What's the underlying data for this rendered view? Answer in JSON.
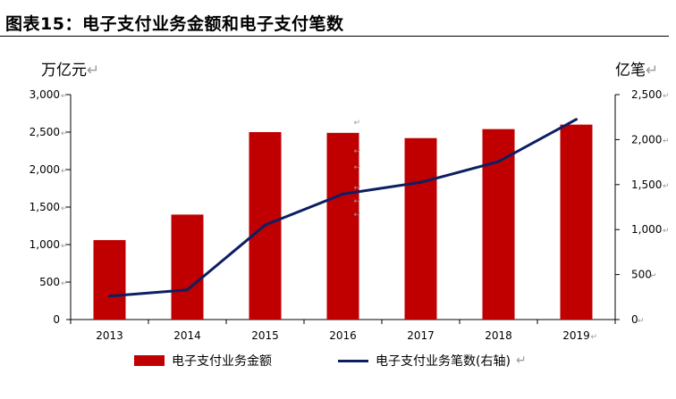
{
  "title": "图表15：电子支付业务金额和电子支付笔数",
  "left_unit": "万亿元",
  "right_unit": "亿笔",
  "colors": {
    "bar": "#c00000",
    "line": "#0d1f63",
    "axis": "#000000",
    "mark": "#9a9a9a"
  },
  "chart_data": {
    "type": "bar",
    "categories": [
      "2013",
      "2014",
      "2015",
      "2016",
      "2017",
      "2018",
      "2019"
    ],
    "series": [
      {
        "name": "电子支付业务金额",
        "type": "bar",
        "axis": "left",
        "values": [
          1060,
          1400,
          2500,
          2490,
          2420,
          2540,
          2600
        ]
      },
      {
        "name": "电子支付业务笔数(右轴)",
        "type": "line",
        "axis": "right",
        "values": [
          260,
          330,
          1050,
          1395,
          1525,
          1755,
          2225
        ]
      }
    ],
    "y_left": {
      "min": 0,
      "max": 3000,
      "ticks": [
        "0",
        "500",
        "1,000",
        "1,500",
        "2,000",
        "2,500",
        "3,000"
      ]
    },
    "y_right": {
      "min": 0,
      "max": 2500,
      "ticks": [
        "0",
        "500",
        "1,000",
        "1,500",
        "2,000",
        "2,500"
      ]
    },
    "grid": false,
    "legend": "bottom"
  },
  "legend": {
    "bar_label": "电子支付业务金额",
    "line_label": "电子支付业务笔数(右轴)"
  }
}
